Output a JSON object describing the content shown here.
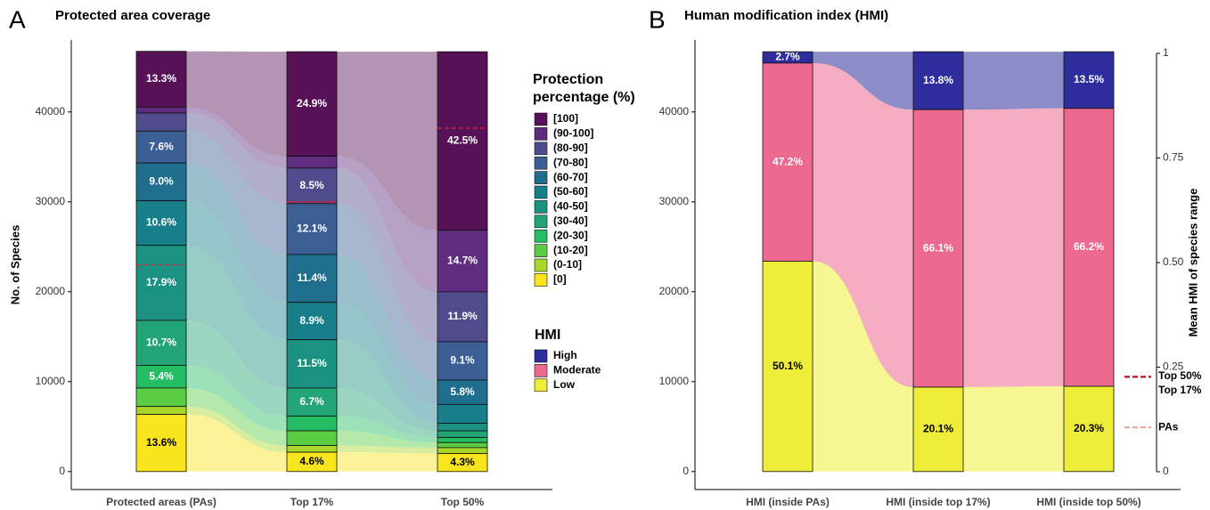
{
  "chart_data": [
    {
      "type": "alluvial",
      "panel": "A",
      "title": "Protected area coverage",
      "ylabel": "No. of Species",
      "categories": [
        "Protected areas (PAs)",
        "Top 17%",
        "Top 50%"
      ],
      "ylim": [
        -2000,
        48000
      ],
      "yticks": [
        0,
        10000,
        20000,
        30000,
        40000
      ],
      "legend": "right",
      "legend_title": "Protection percentage (%)",
      "hmi_legend_title": "HMI",
      "series": [
        {
          "name": "[100]",
          "color": "#571257",
          "values": [
            6211,
            11628,
            19848
          ],
          "value_labels": [
            "13.3%",
            "24.9%",
            "42.5%"
          ]
        },
        {
          "name": "(90-100]",
          "color": "#5f2c80",
          "values": [
            654,
            1308,
            6865
          ],
          "value_labels": [
            null,
            null,
            "14.7%"
          ]
        },
        {
          "name": "(80-90]",
          "color": "#4f4b8c",
          "values": [
            2008,
            3970,
            5557
          ],
          "value_labels": [
            null,
            "8.5%",
            "11.9%"
          ]
        },
        {
          "name": "(70-80]",
          "color": "#3b5e95",
          "values": [
            3549,
            5651,
            4250
          ],
          "value_labels": [
            "7.6%",
            "12.1%",
            "9.1%"
          ]
        },
        {
          "name": "(60-70]",
          "color": "#1f6e8e",
          "values": [
            4203,
            5324,
            2709
          ],
          "value_labels": [
            "9.0%",
            "11.4%",
            "5.8%"
          ]
        },
        {
          "name": "(50-60]",
          "color": "#177f8a",
          "values": [
            4950,
            4156,
            2102
          ],
          "value_labels": [
            "10.6%",
            "8.9%",
            null
          ]
        },
        {
          "name": "(40-50]",
          "color": "#1a9181",
          "values": [
            8359,
            5371,
            841
          ],
          "value_labels": [
            "17.9%",
            "11.5%",
            null
          ]
        },
        {
          "name": "(30-40]",
          "color": "#22a474",
          "values": [
            4997,
            3129,
            747
          ],
          "value_labels": [
            "10.7%",
            "6.7%",
            null
          ]
        },
        {
          "name": "(20-30]",
          "color": "#25bd64",
          "values": [
            2522,
            1635,
            560
          ],
          "value_labels": [
            "5.4%",
            null,
            null
          ]
        },
        {
          "name": "(10-20]",
          "color": "#5acd45",
          "values": [
            2055,
            1635,
            560
          ],
          "value_labels": [
            null,
            null,
            null
          ]
        },
        {
          "name": "(0-10]",
          "color": "#a9d62a",
          "values": [
            887,
            747,
            654
          ],
          "value_labels": [
            null,
            null,
            null
          ]
        },
        {
          "name": "[0]",
          "color": "#f8e51d",
          "values": [
            6351,
            2148,
            2008
          ],
          "value_labels": [
            "13.6%",
            "4.6%",
            "4.3%"
          ]
        }
      ],
      "reference_lines": {
        "color": "#e8202a",
        "values": [
          23000,
          30000,
          38200
        ]
      }
    },
    {
      "type": "alluvial",
      "panel": "B",
      "title": "Human modification index (HMI)",
      "y2label": "Mean HMI of species range",
      "categories": [
        "HMI (inside PAs)",
        "HMI (inside top 17%)",
        "HMI (inside top 50%)"
      ],
      "ylim": [
        -2000,
        48000
      ],
      "yticks": [
        0,
        10000,
        20000,
        30000,
        40000
      ],
      "y2lim": [
        0,
        1
      ],
      "y2ticks": [
        0,
        0.25,
        {
          "value": 0.5,
          "label": "0.50"
        },
        0.75,
        1
      ],
      "series": [
        {
          "name": "High",
          "color": "#2e2d9b",
          "values": [
            1261,
            6445,
            6305
          ],
          "value_labels": [
            "2.7%",
            "13.8%",
            "13.5%"
          ]
        },
        {
          "name": "Moderate",
          "color": "#ec6990",
          "values": [
            22042,
            30869,
            30915
          ],
          "value_labels": [
            "47.2%",
            "66.1%",
            "66.2%"
          ]
        },
        {
          "name": "Low",
          "color": "#eeee3a",
          "values": [
            23397,
            9387,
            9480
          ],
          "value_labels": [
            "50.1%",
            "20.1%",
            "20.3%"
          ]
        }
      ],
      "markers": [
        {
          "label": "Top 50%",
          "value": 0.228,
          "color": "#e8202a"
        },
        {
          "label": "Top 17%",
          "value": 0.226,
          "color": "#b0142a"
        },
        {
          "label": "PAs",
          "value": 0.106,
          "color": "#f08080"
        }
      ]
    }
  ]
}
